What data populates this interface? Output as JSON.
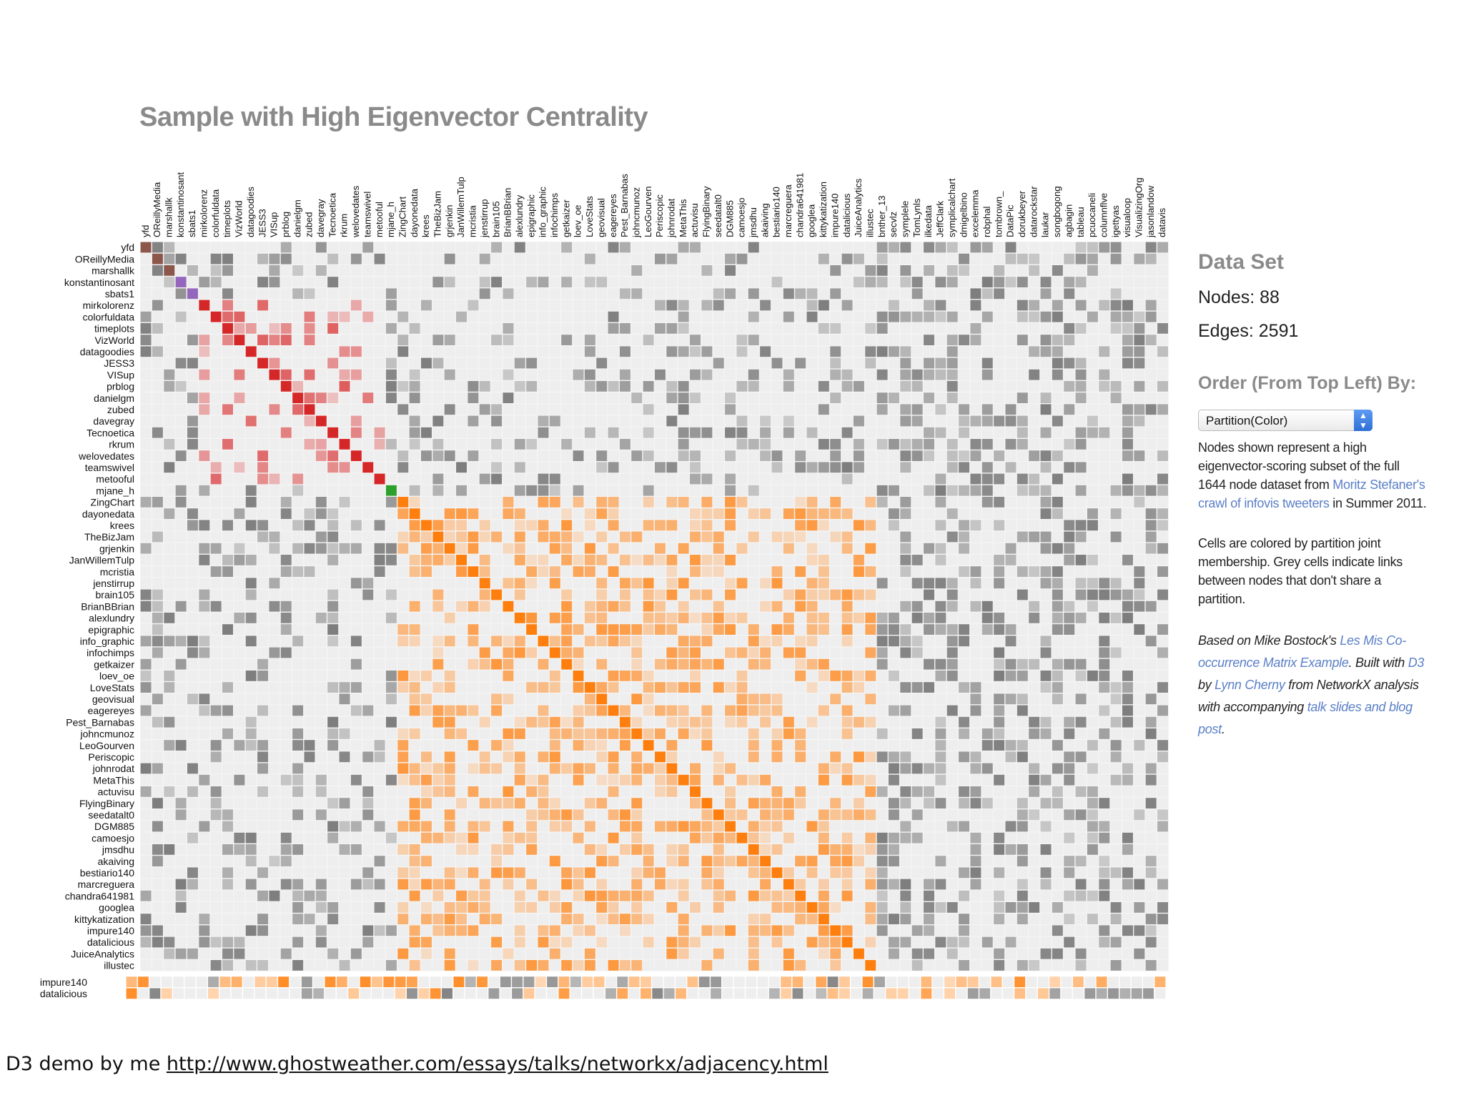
{
  "title": "Sample with High Eigenvector Centrality",
  "side": {
    "heading": "Data Set",
    "nodes_label": "Nodes: 88",
    "edges_label": "Edges: 2591",
    "order_heading": "Order (From Top Left) By:",
    "select_value": "Partition(Color)",
    "desc_1": "Nodes shown represent a high eigenvector-scoring subset of the full 1644 node dataset from ",
    "desc_1_link": "Moritz Stefaner's crawl of infovis tweeters",
    "desc_1_tail": " in Summer 2011.",
    "desc_2": "Cells are colored by partition joint membership. Grey cells indicate links between nodes that don't share a partition.",
    "credit_1": "Based on Mike Bostock's ",
    "credit_link_1": "Les Mis Co-occurrence Matrix Example",
    "credit_2": ". Built with ",
    "credit_link_2": "D3",
    "credit_3": " by ",
    "credit_link_3": "Lynn Cherny",
    "credit_4": " from NetworkX analysis with accompanying ",
    "credit_link_4": "talk slides and blog post",
    "credit_5": "."
  },
  "footer": {
    "prefix": "D3 demo by me ",
    "url": "http://www.ghostweather.com/essays/talks/networkx/adjacency.html"
  },
  "colors": {
    "background_cell": "#eeeeee",
    "grey_link": "#777777",
    "partition_red": "#d62728",
    "partition_purple": "#9467bd",
    "partition_brown": "#8c564b",
    "partition_green": "#2ca02c",
    "partition_orange": "#ff7f0e",
    "partition_blue": "#1f77b4"
  },
  "chart_data": {
    "type": "heatmap",
    "node_count": 88,
    "edge_count": 2591,
    "column_labels": [
      "yfd",
      "OReillyMedia",
      "marshallk",
      "konstantinosant",
      "sbats1",
      "mirkolorenz",
      "colorfuldata",
      "timeplots",
      "VizWorld",
      "datagoodies",
      "JESS3",
      "VISup",
      "prblog",
      "danielgm",
      "zubed",
      "davegray",
      "Tecnoetica",
      "rkrum",
      "welovedates",
      "teamswivel",
      "metooful",
      "mjane_h",
      "ZingChart",
      "dayonedata",
      "krees",
      "TheBizJam",
      "grjenkin",
      "JanWillemTulp",
      "mcristia",
      "jenstirrup",
      "brain105",
      "BrianBBrian",
      "alexlundry",
      "epigraphic",
      "info_graphic",
      "infochimps",
      "getkaizer",
      "loev_oe",
      "LoveStats",
      "geovisual",
      "eagereyes",
      "Pest_Barnabas",
      "johncmunoz",
      "LeoGourven",
      "Periscopic",
      "johnrodat",
      "MetaThis",
      "actuvisu",
      "FlyingBinary",
      "seedatalt0",
      "DGM885",
      "camoesjo",
      "jmsdhu",
      "akaiving",
      "bestiario140",
      "marcreguera",
      "chandra641981",
      "googlea",
      "kittykatization",
      "impure140",
      "datalicious",
      "JuiceAnalytics",
      "illustec",
      "bnther_13",
      "secvlz",
      "symplele",
      "TomLynls",
      "ilkedata",
      "JeffClark",
      "symplicalchart",
      "dmigelbino",
      "excelemma",
      "robphal",
      "tombrown_",
      "DataPic",
      "dorukbeyer",
      "datarockstar",
      "laukar",
      "songbogong",
      "agbagin",
      "tableau",
      "pcuocaneli",
      "columnflve",
      "igettyas",
      "visualoop",
      "VisualizingOrg",
      "jasonlandow",
      "datavis"
    ],
    "row_labels": [
      "yfd",
      "OReillyMedia",
      "marshallk",
      "konstantinosant",
      "sbats1",
      "mirkolorenz",
      "colorfuldata",
      "timeplots",
      "VizWorld",
      "datagoodies",
      "JESS3",
      "VISup",
      "prblog",
      "danielgm",
      "zubed",
      "davegray",
      "Tecnoetica",
      "rkrum",
      "welovedates",
      "teamswivel",
      "metooful",
      "mjane_h",
      "ZingChart",
      "dayonedata",
      "krees",
      "TheBizJam",
      "grjenkin",
      "JanWillemTulp",
      "mcristia",
      "jenstirrup",
      "brain105",
      "BrianBBrian",
      "alexlundry",
      "epigraphic",
      "info_graphic",
      "infochimps",
      "getkaizer",
      "loev_oe",
      "LoveStats",
      "geovisual",
      "eagereyes",
      "Pest_Barnabas",
      "johncmunoz",
      "LeoGourven",
      "Periscopic",
      "johnrodat",
      "MetaThis",
      "actuvisu",
      "FlyingBinary",
      "seedatalt0",
      "DGM885",
      "camoesjo",
      "jmsdhu",
      "akaiving",
      "bestiario140",
      "marcreguera",
      "chandra641981",
      "googlea",
      "kittykatization",
      "impure140",
      "datalicious",
      "JuiceAnalytics",
      "illustec"
    ],
    "extra_row_labels": [
      "impure140",
      "datalicious"
    ],
    "diagonal_partitions": [
      {
        "from": 0,
        "to": 0,
        "color": "#8c564b"
      },
      {
        "from": 1,
        "to": 2,
        "color": "#8c564b"
      },
      {
        "from": 3,
        "to": 4,
        "color": "#9467bd"
      },
      {
        "from": 5,
        "to": 20,
        "color": "#d62728"
      },
      {
        "from": 21,
        "to": 21,
        "color": "#2ca02c"
      },
      {
        "from": 22,
        "to": 62,
        "color": "#ff7f0e"
      }
    ]
  }
}
